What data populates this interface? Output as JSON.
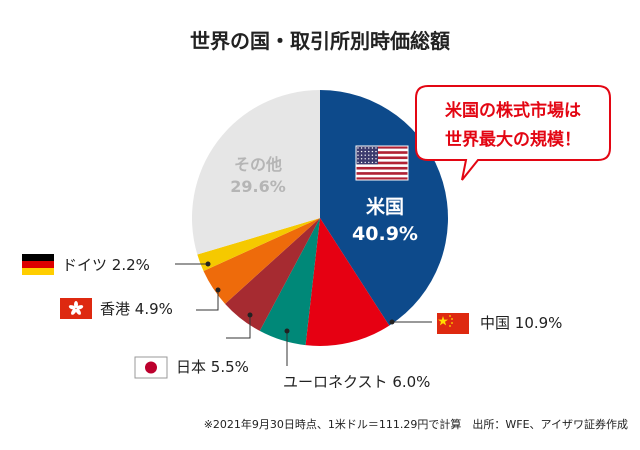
{
  "chart_data": {
    "type": "pie",
    "title": "世界の国・取引所別時価総額",
    "slices": [
      {
        "label": "米国",
        "value": 40.9,
        "value_text": "40.9%",
        "color": "#0d4a8b",
        "flag": "us"
      },
      {
        "label": "中国",
        "value": 10.9,
        "value_text": "10.9%",
        "color": "#e60012",
        "flag": "cn"
      },
      {
        "label": "ユーロネクスト",
        "value": 6.0,
        "value_text": "6.0%",
        "color": "#008878",
        "flag": null
      },
      {
        "label": "日本",
        "value": 5.5,
        "value_text": "5.5%",
        "color": "#a62b31",
        "flag": "jp"
      },
      {
        "label": "香港",
        "value": 4.9,
        "value_text": "4.9%",
        "color": "#ee6b0b",
        "flag": "hk"
      },
      {
        "label": "ドイツ",
        "value": 2.2,
        "value_text": "2.2%",
        "color": "#f5c900",
        "flag": "de"
      },
      {
        "label": "その他",
        "value": 29.6,
        "value_text": "29.6%",
        "color": "#e6e6e6",
        "flag": null
      }
    ]
  },
  "callout": {
    "line1": "米国の株式市場は",
    "line2": "世界最大の規模！",
    "color": "#e30613"
  },
  "footnote": "※2021年9月30日時点、1米ドル＝111.29円で計算　出所：WFE、アイザワ証券作成"
}
